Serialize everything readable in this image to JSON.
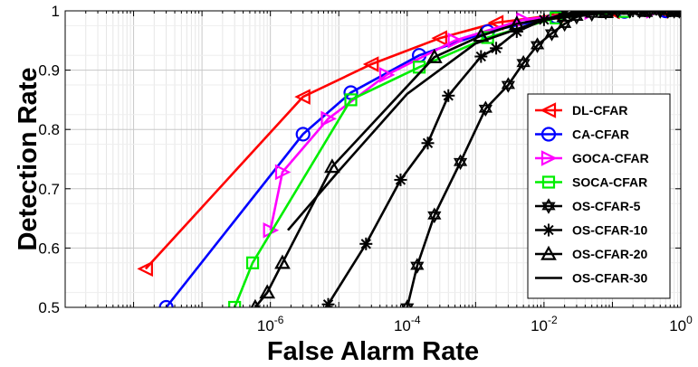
{
  "chart_data": {
    "type": "line",
    "title": "",
    "xlabel": "False Alarm Rate",
    "ylabel": "Detection Rate",
    "xscale": "log",
    "xlim": [
      1e-09,
      1
    ],
    "ylim": [
      0.5,
      1
    ],
    "grid": true,
    "legend_position": "center-right",
    "x_ticks": [
      {
        "value": 1e-06,
        "base": "10",
        "exp": "-6"
      },
      {
        "value": 0.0001,
        "base": "10",
        "exp": "-4"
      },
      {
        "value": 0.01,
        "base": "10",
        "exp": "-2"
      },
      {
        "value": 1,
        "base": "10",
        "exp": "0"
      }
    ],
    "y_ticks": [
      {
        "value": 0.5,
        "label": "0.5"
      },
      {
        "value": 0.6,
        "label": "0.6"
      },
      {
        "value": 0.7,
        "label": "0.7"
      },
      {
        "value": 0.8,
        "label": "0.8"
      },
      {
        "value": 0.9,
        "label": "0.9"
      },
      {
        "value": 1.0,
        "label": "1"
      }
    ],
    "series": [
      {
        "name": "DL-CFAR",
        "color": "#ff0000",
        "marker": "triangle-left",
        "x": [
          1.5e-08,
          3e-06,
          3e-05,
          0.0003,
          0.002,
          0.015,
          0.1,
          0.5
        ],
        "y": [
          0.565,
          0.855,
          0.91,
          0.954,
          0.98,
          0.993,
          0.999,
          1.0
        ]
      },
      {
        "name": "CA-CFAR",
        "color": "#0000ff",
        "marker": "circle",
        "x": [
          3e-08,
          3e-06,
          1.5e-05,
          0.00015,
          0.0015,
          0.015,
          0.15,
          0.6
        ],
        "y": [
          0.5,
          0.792,
          0.862,
          0.925,
          0.965,
          0.99,
          0.999,
          1.0
        ]
      },
      {
        "name": "GOCA-CFAR",
        "color": "#ff00ff",
        "marker": "triangle-right",
        "x": [
          1e-06,
          1.5e-06,
          7e-06,
          5e-05,
          0.0005,
          0.005,
          0.05,
          0.4
        ],
        "y": [
          0.63,
          0.728,
          0.818,
          0.892,
          0.95,
          0.985,
          0.998,
          1.0
        ]
      },
      {
        "name": "SOCA-CFAR",
        "color": "#00ee00",
        "marker": "square",
        "x": [
          3e-07,
          5.5e-07,
          1.5e-05,
          0.00015,
          0.0015,
          0.015,
          0.15
        ],
        "y": [
          0.5,
          0.575,
          0.85,
          0.905,
          0.955,
          0.988,
          0.999
        ]
      },
      {
        "name": "OS-CFAR-5",
        "color": "#000000",
        "marker": "hexagram",
        "x": [
          0.0001,
          0.00014,
          0.00025,
          0.0006,
          0.0014,
          0.003,
          0.005,
          0.008,
          0.013,
          0.02,
          0.03,
          0.05,
          0.08,
          0.12,
          0.18,
          0.25,
          0.35,
          0.5,
          0.65,
          0.8,
          0.95
        ],
        "y": [
          0.5,
          0.57,
          0.655,
          0.745,
          0.835,
          0.875,
          0.912,
          0.942,
          0.962,
          0.978,
          0.99,
          0.995,
          0.998,
          1.0,
          1.0,
          1.0,
          1.0,
          1.0,
          1.0,
          1.0,
          1.0
        ]
      },
      {
        "name": "OS-CFAR-10",
        "color": "#000000",
        "marker": "asterisk",
        "x": [
          7e-06,
          2.5e-05,
          8e-05,
          0.0002,
          0.0004,
          0.0012,
          0.002,
          0.004,
          0.01,
          0.02,
          0.03,
          0.06,
          0.1,
          0.2,
          0.3,
          0.5,
          0.7,
          0.9
        ],
        "y": [
          0.505,
          0.607,
          0.715,
          0.777,
          0.857,
          0.923,
          0.937,
          0.965,
          0.985,
          0.995,
          0.998,
          1.0,
          1.0,
          1.0,
          1.0,
          1.0,
          1.0,
          1.0
        ]
      },
      {
        "name": "OS-CFAR-20",
        "color": "#000000",
        "marker": "triangle-up",
        "x": [
          6e-07,
          9e-07,
          1.5e-06,
          8e-06,
          0.00025,
          0.0012,
          0.004,
          0.02,
          0.08,
          0.3,
          0.8
        ],
        "y": [
          0.5,
          0.525,
          0.575,
          0.737,
          0.922,
          0.958,
          0.978,
          0.992,
          0.998,
          1.0,
          1.0
        ]
      },
      {
        "name": "OS-CFAR-30",
        "color": "#000000",
        "marker": "none",
        "x": [
          1.8e-06,
          1e-05,
          0.0001,
          0.001,
          0.01,
          0.1,
          1.0
        ],
        "y": [
          0.63,
          0.73,
          0.86,
          0.945,
          0.985,
          0.998,
          1.0
        ]
      }
    ]
  }
}
